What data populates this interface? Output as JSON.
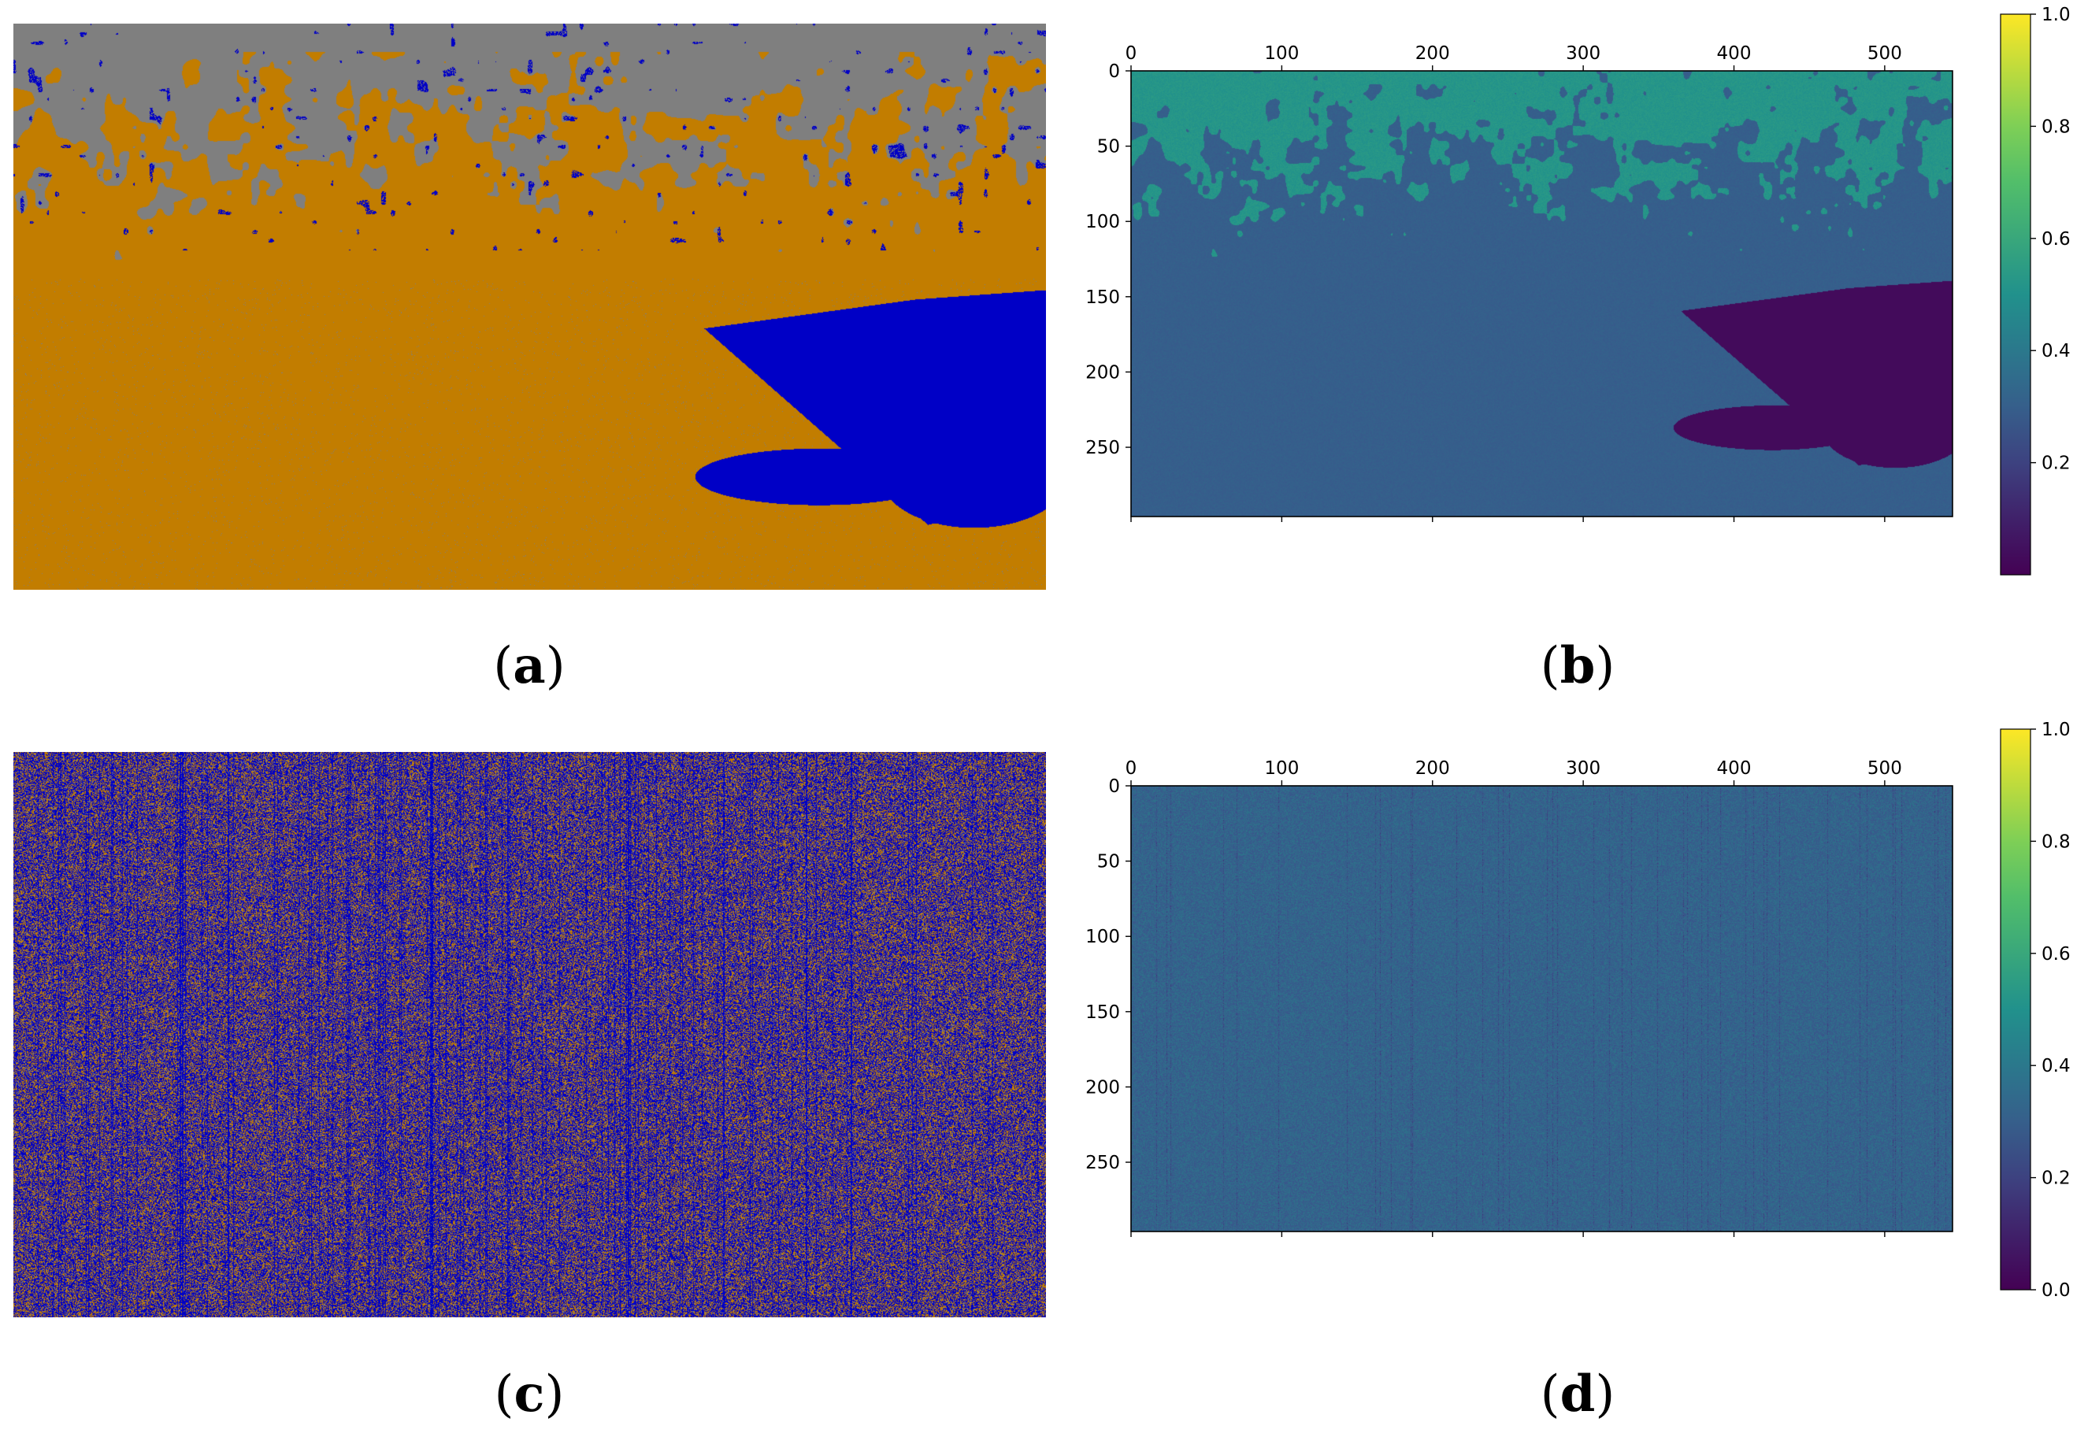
{
  "panels": [
    {
      "id": "a",
      "caption": "a",
      "kind": "segmentation",
      "palette": [
        "#7f7f7f",
        "#c27d00",
        "#0000c6"
      ]
    },
    {
      "id": "b",
      "caption": "b",
      "kind": "heatmap"
    },
    {
      "id": "c",
      "caption": "c",
      "kind": "segmentation",
      "palette": [
        "#7f7f7f",
        "#c27d00",
        "#0000c6"
      ]
    },
    {
      "id": "d",
      "caption": "d",
      "kind": "heatmap"
    }
  ],
  "chart_data": [
    {
      "type": "heatmap",
      "panel": "b",
      "title": "",
      "xlabel": "",
      "ylabel": "",
      "x_ticks": [
        0,
        100,
        200,
        300,
        400,
        500
      ],
      "y_ticks": [
        0,
        50,
        100,
        150,
        200,
        250
      ],
      "xlim": [
        0,
        545
      ],
      "ylim": [
        0,
        296
      ],
      "colorbar": {
        "range": [
          0.0,
          1.0
        ],
        "ticks": [
          "1.0",
          "0.8",
          "0.6",
          "0.4",
          "0.2"
        ],
        "colormap": "viridis"
      }
    },
    {
      "type": "heatmap",
      "panel": "d",
      "title": "",
      "xlabel": "",
      "ylabel": "",
      "x_ticks": [
        0,
        100,
        200,
        300,
        400,
        500
      ],
      "y_ticks": [
        0,
        50,
        100,
        150,
        200,
        250
      ],
      "xlim": [
        0,
        545
      ],
      "ylim": [
        0,
        296
      ],
      "colorbar": {
        "range": [
          0.0,
          1.0
        ],
        "ticks": [
          "1.0",
          "0.8",
          "0.6",
          "0.4",
          "0.2",
          "0.0"
        ],
        "colormap": "viridis"
      }
    }
  ]
}
